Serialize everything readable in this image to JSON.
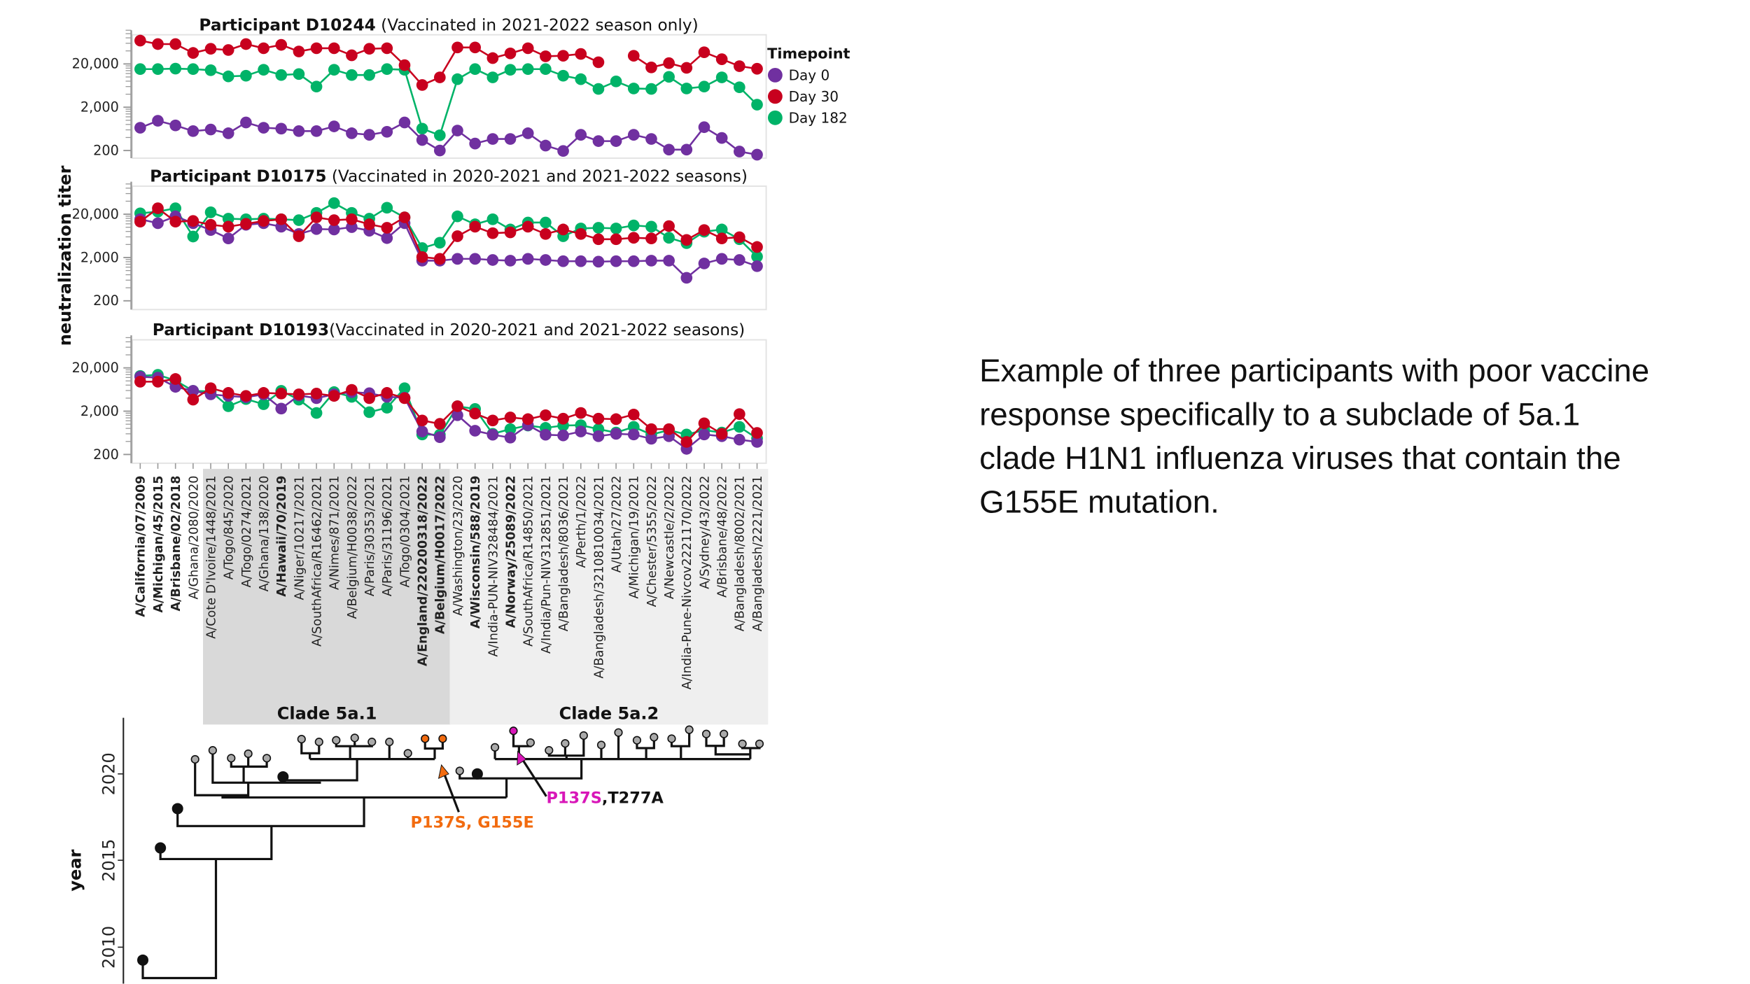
{
  "caption": {
    "lines": [
      "Example of three participants with poor vaccine",
      "response specifically to a subclade of 5a.1",
      "clade H1N1 influenza viruses that contain the",
      "G155E mutation."
    ]
  },
  "chart_data": {
    "type": "line",
    "yscale": "log",
    "ylabel": "neutralization titer",
    "yticks": [
      200,
      2000,
      20000
    ],
    "ytick_labels": [
      "200",
      "2,000",
      "20,000"
    ],
    "legend": {
      "title": "Timepoint",
      "placement": "right",
      "items": [
        {
          "name": "Day 0",
          "color": "#7030a0"
        },
        {
          "name": "Day 30",
          "color": "#c8001e"
        },
        {
          "name": "Day 182",
          "color": "#00b368"
        }
      ]
    },
    "categories": [
      "A/California/07/2009",
      "A/Michigan/45/2015",
      "A/Brisbane/02/2018",
      "A/Ghana/2080/2020",
      "A/Cote D'Ivoire/1448/2021",
      "A/Togo/845/2020",
      "A/Togo/0274/2021",
      "A/Ghana/138/2020",
      "A/Hawaii/70/2019",
      "A/Niger/10217/2021",
      "A/SouthAfrica/R16462/2021",
      "A/Nimes/871/2021",
      "A/Belgium/H0038/2022",
      "A/Paris/30353/2021",
      "A/Paris/31196/2021",
      "A/Togo/0304/2021",
      "A/England/220200318/2022",
      "A/Belgium/H0017/2022",
      "A/Washington/23/2020",
      "A/Wisconsin/588/2019",
      "A/India-PUN-NIV328484/2021",
      "A/Norway/25089/2022",
      "A/SouthAfrica/R14850/2021",
      "A/India/Pun-NIV312851/2021",
      "A/Bangladesh/8036/2021",
      "A/Perth/1/2022",
      "A/Bangladesh/3210810034/2021",
      "A/Utah/27/2022",
      "A/Michigan/19/2021",
      "A/Chester/5355/2022",
      "A/Newcastle/2/2022",
      "A/India-Pune-Nivcov2221170/2022",
      "A/Sydney/43/2022",
      "A/Brisbane/48/2022",
      "A/Bangladesh/8002/2021",
      "A/Bangladesh/2221/2021"
    ],
    "bold_categories": [
      "A/California/07/2009",
      "A/Michigan/45/2015",
      "A/Brisbane/02/2018",
      "A/Hawaii/70/2019",
      "A/England/220200318/2022",
      "A/Belgium/H0017/2022",
      "A/Wisconsin/588/2019",
      "A/Norway/25089/2022"
    ],
    "category_colors": {
      "A/England/220200318/2022": "#f26b0f",
      "A/Belgium/H0017/2022": "#f26b0f",
      "A/Norway/25089/2022": "#d816b8"
    },
    "clades": [
      {
        "label": "Clade 5a.1",
        "from": "A/Cote D'Ivoire/1448/2021",
        "to": "A/Belgium/H0017/2022",
        "color": "#d9d9d9"
      },
      {
        "label": "Clade 5a.2",
        "from": "A/Washington/23/2020",
        "to": "A/Bangladesh/2221/2021",
        "color": "#efefef"
      }
    ],
    "panels": [
      {
        "title": "Participant D10244",
        "subtitle": " (Vaccinated in 2021-2022 season only)",
        "series": [
          {
            "name": "Day 182",
            "values": [
              15200,
              15200,
              15600,
              15200,
              14300,
              10300,
              10700,
              14700,
              11100,
              11700,
              6000,
              14700,
              11100,
              11100,
              15200,
              14700,
              640,
              450,
              8900,
              15200,
              9800,
              14700,
              15200,
              15200,
              10700,
              8900,
              5300,
              7900,
              5400,
              5300,
              10100,
              5400,
              6000,
              9800,
              5800,
              2300
            ]
          },
          {
            "name": "Day 0",
            "values": [
              670,
              970,
              760,
              560,
              610,
              500,
              890,
              670,
              640,
              560,
              560,
              720,
              500,
              460,
              540,
              890,
              350,
              200,
              580,
              290,
              370,
              370,
              500,
              260,
              195,
              460,
              330,
              330,
              460,
              370,
              210,
              210,
              690,
              390,
              190,
              160
            ]
          },
          {
            "name": "Day 30",
            "values": [
              69000,
              57600,
              57600,
              35900,
              44800,
              41900,
              57600,
              46000,
              55300,
              38800,
              46000,
              46000,
              31700,
              44800,
              46000,
              18700,
              6500,
              9800,
              48000,
              48000,
              27300,
              35000,
              46000,
              30000,
              31000,
              34000,
              21900,
              null,
              31000,
              16600,
              20800,
              16200,
              37300,
              25700,
              17800,
              15500
            ]
          }
        ]
      },
      {
        "title": "Participant D10175",
        "subtitle": " (Vaccinated in 2020-2021 and 2021-2022 seasons)",
        "series": [
          {
            "name": "Day 182",
            "values": [
              21000,
              22900,
              27500,
              6100,
              22100,
              15800,
              15300,
              15800,
              15300,
              14600,
              21500,
              36000,
              21500,
              15800,
              28200,
              16900,
              3300,
              4400,
              17900,
              11700,
              15300,
              8900,
              12900,
              12900,
              6200,
              9400,
              9700,
              9400,
              11000,
              10300,
              5700,
              4300,
              7900,
              8900,
              5300,
              2100
            ]
          },
          {
            "name": "Day 0",
            "values": [
              15300,
              12400,
              17900,
              12400,
              8600,
              5500,
              11400,
              12400,
              10300,
              7000,
              9100,
              8900,
              10100,
              8300,
              5600,
              12400,
              1690,
              1690,
              1860,
              1860,
              1750,
              1690,
              1860,
              1750,
              1640,
              1640,
              1600,
              1640,
              1640,
              1690,
              1690,
              680,
              1460,
              1860,
              1750,
              1260
            ]
          },
          {
            "name": "Day 30",
            "values": [
              13500,
              27500,
              13500,
              14000,
              11400,
              10300,
              12000,
              14000,
              15300,
              6200,
              16900,
              14600,
              15300,
              11700,
              9700,
              16900,
              2050,
              1860,
              6200,
              10300,
              7300,
              7600,
              10300,
              7000,
              8900,
              7000,
              5300,
              5300,
              5700,
              5500,
              10600,
              5100,
              8600,
              5500,
              5900,
              3500
            ]
          }
        ]
      },
      {
        "title": "Participant D10193",
        "subtitle": "(Vaccinated in 2020-2021 and 2021-2022 seasons)",
        "series": [
          {
            "name": "Day 182",
            "values": [
              13000,
              13800,
              10200,
              5900,
              5700,
              2600,
              3800,
              2900,
              5900,
              3700,
              1820,
              5500,
              4300,
              1890,
              2400,
              6800,
              580,
              570,
              2600,
              2250,
              600,
              770,
              930,
              820,
              930,
              950,
              770,
              640,
              870,
              580,
              730,
              580,
              730,
              640,
              870,
              470
            ]
          },
          {
            "name": "Day 0",
            "values": [
              12500,
              11900,
              7300,
              5900,
              4900,
              4500,
              4200,
              4900,
              2300,
              4600,
              4000,
              4900,
              5500,
              5200,
              4300,
              4100,
              680,
              500,
              1610,
              710,
              570,
              490,
              950,
              570,
              550,
              680,
              530,
              600,
              580,
              460,
              530,
              270,
              580,
              530,
              440,
              390
            ]
          },
          {
            "name": "Day 30",
            "values": [
              9600,
              9600,
              11100,
              3700,
              6800,
              5300,
              4500,
              5300,
              5100,
              4900,
              5100,
              4500,
              6200,
              4000,
              5300,
              4000,
              1220,
              1020,
              2600,
              1760,
              1220,
              1430,
              1310,
              1610,
              1340,
              1820,
              1340,
              1310,
              1670,
              770,
              770,
              390,
              1050,
              600,
              1710,
              630
            ]
          }
        ]
      }
    ]
  },
  "tree": {
    "ylabel": "year",
    "year_ticks": [
      "2010",
      "2015",
      "2020"
    ],
    "annotation_g155e": {
      "text": "P137S, G155E",
      "color": "#f26b0f"
    },
    "annotation_t277a": {
      "text_colored": "P137S",
      "text_rest": ",T277A",
      "color": "#d816b8"
    }
  }
}
